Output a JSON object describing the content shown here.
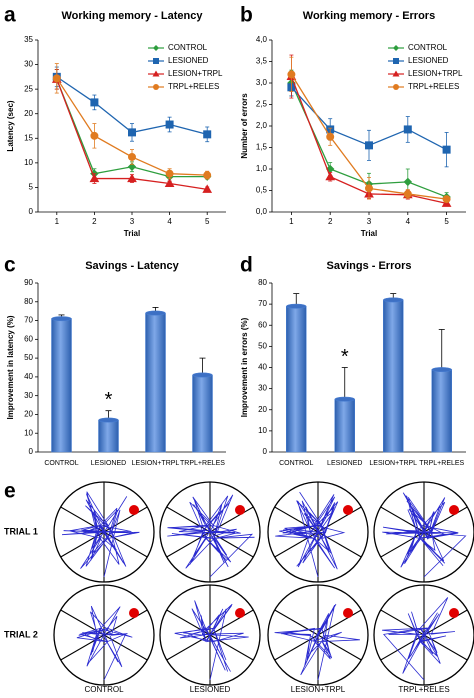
{
  "chart_data": [
    {
      "type": "line",
      "panel": "a",
      "title": "Working memory - Latency",
      "x_label": "Trial",
      "y_label": "Latency (sec)",
      "x": [
        1,
        2,
        3,
        4,
        5
      ],
      "xlim": [
        0.5,
        5.5
      ],
      "xticks": [
        1,
        2,
        3,
        4,
        5
      ],
      "ylim": [
        0,
        35
      ],
      "yticks": [
        0,
        5,
        10,
        15,
        20,
        25,
        30,
        35
      ],
      "legend": "upper right",
      "series": [
        {
          "name": "CONTROL",
          "color": "#2e9e3e",
          "marker": "diamond",
          "values": [
            27,
            7.8,
            9.2,
            7.2,
            7.2
          ],
          "errors": [
            2,
            1,
            1,
            1,
            0.5
          ]
        },
        {
          "name": "LESIONED",
          "color": "#1f65b0",
          "marker": "square",
          "values": [
            27.5,
            22.3,
            16.2,
            17.8,
            15.8
          ],
          "errors": [
            2,
            1.5,
            1.8,
            1.5,
            1.5
          ]
        },
        {
          "name": "LESION+TRPL",
          "color": "#d62020",
          "marker": "triangle",
          "values": [
            27,
            6.8,
            6.8,
            5.8,
            4.6
          ],
          "errors": [
            2,
            1,
            0.8,
            0.5,
            0.5
          ]
        },
        {
          "name": "TRPL+RELES",
          "color": "#e07b20",
          "marker": "circle",
          "values": [
            27.2,
            15.5,
            11.2,
            7.8,
            7.5
          ],
          "errors": [
            3,
            2.5,
            1.5,
            1,
            0.8
          ]
        }
      ]
    },
    {
      "type": "line",
      "panel": "b",
      "title": "Working memory - Errors",
      "x_label": "Trial",
      "y_label": "Number of errors",
      "x": [
        1,
        2,
        3,
        4,
        5
      ],
      "xlim": [
        0.5,
        5.5
      ],
      "xticks": [
        1,
        2,
        3,
        4,
        5
      ],
      "ylim": [
        0,
        4
      ],
      "yticks": [
        {
          "value": 0,
          "label": "0,0"
        },
        {
          "value": 0.5,
          "label": "0,5"
        },
        {
          "value": 1,
          "label": "1,0"
        },
        {
          "value": 1.5,
          "label": "1,5"
        },
        {
          "value": 2,
          "label": "2,0"
        },
        {
          "value": 2.5,
          "label": "2,5"
        },
        {
          "value": 3,
          "label": "3,0"
        },
        {
          "value": 3.5,
          "label": "3,5"
        },
        {
          "value": 4,
          "label": "4,0"
        }
      ],
      "legend": "upper right",
      "series": [
        {
          "name": "CONTROL",
          "color": "#2e9e3e",
          "marker": "diamond",
          "values": [
            3.0,
            1.0,
            0.65,
            0.7,
            0.35
          ],
          "errors": [
            0.3,
            0.15,
            0.25,
            0.3,
            0.1
          ]
        },
        {
          "name": "LESIONED",
          "color": "#1f65b0",
          "marker": "square",
          "values": [
            2.9,
            1.92,
            1.55,
            1.92,
            1.45
          ],
          "errors": [
            0.2,
            0.25,
            0.35,
            0.3,
            0.4
          ]
        },
        {
          "name": "LESION+TRPL",
          "color": "#d62020",
          "marker": "triangle",
          "values": [
            3.15,
            0.82,
            0.42,
            0.4,
            0.2
          ],
          "errors": [
            0.5,
            0.1,
            0.1,
            0.1,
            0.05
          ]
        },
        {
          "name": "TRPL+RELES",
          "color": "#e07b20",
          "marker": "circle",
          "values": [
            3.2,
            1.75,
            0.55,
            0.42,
            0.3
          ],
          "errors": [
            0.4,
            0.2,
            0.25,
            0.1,
            0.05
          ]
        }
      ]
    },
    {
      "type": "bar",
      "panel": "c",
      "title": "Savings - Latency",
      "y_label": "Improvement in latency (%)",
      "categories": [
        "CONTROL",
        "LESIONED",
        "LESION+TRPL",
        "TRPL+RELES"
      ],
      "values": [
        71,
        17,
        74,
        41
      ],
      "errors": [
        2,
        5,
        3,
        9
      ],
      "color": "#4a80d4",
      "ylim": [
        0,
        90
      ],
      "yticks": [
        0,
        10,
        20,
        30,
        40,
        50,
        60,
        70,
        80,
        90
      ],
      "annotations": [
        {
          "text": "*",
          "x": "LESIONED"
        }
      ]
    },
    {
      "type": "bar",
      "panel": "d",
      "title": "Savings - Errors",
      "y_label": "Improvement in errors (%)",
      "categories": [
        "CONTROL",
        "LESIONED",
        "LESION+TRPL",
        "TRPL+RELES"
      ],
      "values": [
        69,
        25,
        72,
        39
      ],
      "errors": [
        6,
        15,
        3,
        19
      ],
      "color": "#4a80d4",
      "ylim": [
        0,
        80
      ],
      "yticks": [
        0,
        10,
        20,
        30,
        40,
        50,
        60,
        70,
        80
      ],
      "annotations": [
        {
          "text": "*",
          "x": "LESIONED"
        }
      ]
    }
  ],
  "maze": {
    "panel": "e",
    "rows": [
      "TRIAL 1",
      "TRIAL 2"
    ],
    "columns": [
      "CONTROL",
      "LESIONED",
      "LESION+TRPL",
      "TRPL+RELES"
    ]
  }
}
